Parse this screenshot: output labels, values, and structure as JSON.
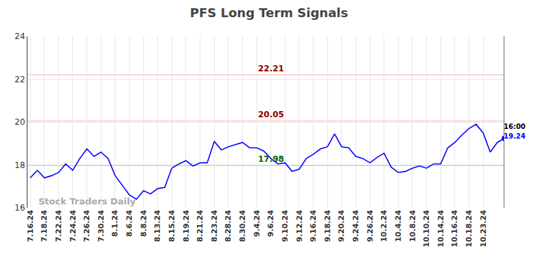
{
  "chart_data": {
    "type": "line",
    "title": "PFS Long Term Signals",
    "categories": [
      "7.16.24",
      null,
      "7.18.24",
      null,
      "7.22.24",
      null,
      "7.24.24",
      null,
      "7.26.24",
      null,
      "7.30.24",
      null,
      "8.1.24",
      null,
      "8.6.24",
      null,
      "8.8.24",
      null,
      "8.13.24",
      null,
      "8.15.24",
      null,
      "8.19.24",
      null,
      "8.21.24",
      null,
      "8.23.24",
      null,
      "8.28.24",
      null,
      "8.30.24",
      null,
      "9.4.24",
      null,
      "9.6.24",
      null,
      "9.10.24",
      null,
      "9.12.24",
      null,
      "9.16.24",
      null,
      "9.18.24",
      null,
      "9.20.24",
      null,
      "9.24.24",
      null,
      "9.26.24",
      null,
      "10.2.24",
      null,
      "10.4.24",
      null,
      "10.8.24",
      null,
      "10.10.24",
      null,
      "10.14.24",
      null,
      "10.16.24",
      null,
      "10.18.24",
      null,
      "10.23.24",
      null,
      null,
      null
    ],
    "values": [
      17.4,
      17.75,
      17.4,
      17.5,
      17.65,
      18.05,
      17.75,
      18.3,
      18.75,
      18.4,
      18.6,
      18.3,
      17.5,
      17.05,
      16.6,
      16.4,
      16.8,
      16.65,
      16.9,
      16.95,
      17.85,
      18.05,
      18.2,
      17.95,
      18.1,
      18.1,
      19.1,
      18.7,
      18.85,
      18.95,
      19.05,
      18.8,
      18.8,
      18.65,
      18.3,
      18.05,
      18.1,
      17.7,
      17.8,
      18.3,
      18.5,
      18.75,
      18.85,
      19.45,
      18.85,
      18.8,
      18.4,
      18.3,
      18.1,
      18.35,
      18.55,
      17.9,
      17.65,
      17.7,
      17.85,
      17.95,
      17.85,
      18.05,
      18.05,
      18.8,
      19.05,
      19.4,
      19.7,
      19.9,
      19.5,
      18.6,
      19.05,
      19.24
    ],
    "color": "#0000ff",
    "ylim": [
      16,
      24
    ],
    "yticks": [
      16,
      18,
      20,
      22,
      24
    ],
    "grid": true,
    "reference_lines": [
      {
        "value": 22.21,
        "label": "22.21",
        "color": "#ffc8c8",
        "label_color": "#8b0000"
      },
      {
        "value": 20.05,
        "label": "20.05",
        "color": "#ffc8c8",
        "label_color": "#8b0000"
      },
      {
        "value": 17.98,
        "label": "17.98",
        "color": "#90ee90",
        "label_color": "#006400"
      }
    ],
    "last_point_label": "16:00",
    "watermark": "Stock Traders Daily"
  }
}
